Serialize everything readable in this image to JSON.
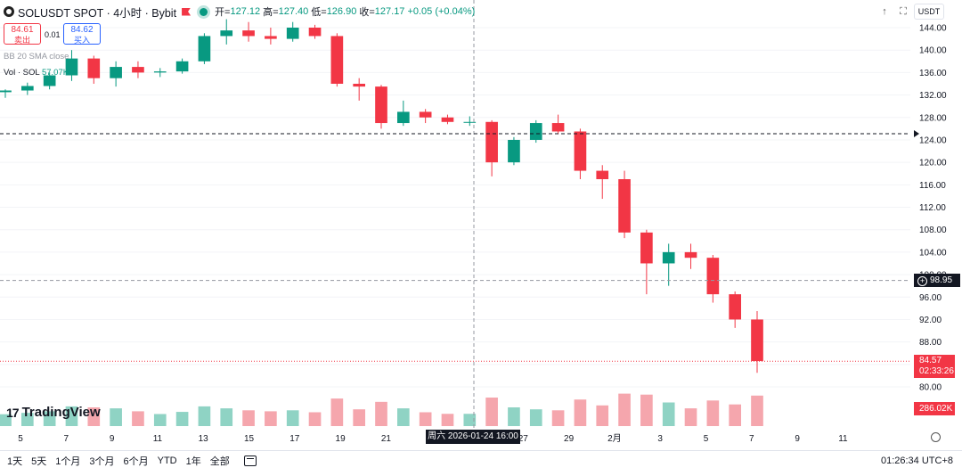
{
  "header": {
    "symbol_title": "SOLUSDT SPOT · 4小时 · Bybit",
    "open_label": "开=",
    "open_value": "127.12",
    "high_label": "高=",
    "high_value": "127.40",
    "low_label": "低=",
    "low_value": "126.90",
    "close_label": "收=",
    "close_value": "127.17",
    "change_value": "+0.05 (+0.04%)",
    "currency_label": "USDT",
    "icons": [
      "solana-icon",
      "flag-icon",
      "live-dot-icon",
      "up-arrow-icon",
      "fullscreen-icon"
    ]
  },
  "trade": {
    "sell_price": "84.61",
    "sell_label": "卖出",
    "spread": "0.01",
    "buy_price": "84.62",
    "buy_label": "买入"
  },
  "legends": {
    "bb": "BB 20 SMA close",
    "vol_label": "Vol · SOL",
    "vol_value": "57.07K"
  },
  "price_axis": {
    "ticks": [
      "144.00",
      "140.00",
      "136.00",
      "132.00",
      "128.00",
      "124.00",
      "120.00",
      "116.00",
      "112.00",
      "108.00",
      "104.00",
      "100.00",
      "96.00",
      "92.00",
      "88.00",
      "84.00",
      "80.00"
    ],
    "crosshair_price": "98.95",
    "last_price": "84.57",
    "countdown": "02:33:26",
    "volume_value": "286.02K"
  },
  "time_axis": {
    "ticks": [
      "5",
      "7",
      "9",
      "11",
      "13",
      "15",
      "17",
      "19",
      "21",
      "23",
      "25",
      "27",
      "29",
      "2月",
      "3",
      "5",
      "7",
      "9",
      "11"
    ],
    "crosshair_time": "周六 2026-01-24 16:00"
  },
  "branding": {
    "logo_text": "TradingView"
  },
  "bottombar": {
    "ranges": [
      "1天",
      "5天",
      "1个月",
      "3个月",
      "6个月",
      "YTD",
      "1年",
      "全部"
    ],
    "clock": "01:26:34 UTC+8"
  },
  "colors": {
    "up": "#089981",
    "down": "#f23645",
    "up_volume": "#8fd3c4",
    "down_volume": "#f5a6ad",
    "accent": "#2962ff"
  },
  "chart_data": {
    "type": "candlestick",
    "symbol": "SOLUSDT",
    "interval": "4小时",
    "y_range": [
      80,
      144
    ],
    "series": [
      {
        "name": "candles",
        "points": [
          [
            "01-04",
            132.5,
            133.0,
            131.5,
            132.8
          ],
          [
            "01-05",
            132.8,
            134.2,
            132.0,
            133.6
          ],
          [
            "01-06",
            133.6,
            136.0,
            133.0,
            135.5
          ],
          [
            "01-07",
            135.5,
            140.0,
            134.5,
            138.5
          ],
          [
            "01-08",
            138.5,
            139.0,
            134.0,
            135.0
          ],
          [
            "01-09",
            135.0,
            138.0,
            133.5,
            137.0
          ],
          [
            "01-10",
            137.0,
            138.0,
            135.0,
            136.0
          ],
          [
            "01-11",
            136.0,
            136.8,
            135.2,
            136.2
          ],
          [
            "01-12",
            136.2,
            138.5,
            135.8,
            138.0
          ],
          [
            "01-13",
            138.0,
            143.0,
            137.5,
            142.5
          ],
          [
            "01-14",
            142.5,
            145.5,
            141.0,
            143.5
          ],
          [
            "01-15",
            143.5,
            145.0,
            141.5,
            142.5
          ],
          [
            "01-16",
            142.5,
            144.0,
            141.0,
            142.0
          ],
          [
            "01-17",
            142.0,
            145.0,
            141.5,
            144.0
          ],
          [
            "01-18",
            144.0,
            144.5,
            142.0,
            142.5
          ],
          [
            "01-19",
            142.5,
            143.0,
            133.5,
            134.0
          ],
          [
            "01-20",
            134.0,
            135.0,
            131.0,
            133.5
          ],
          [
            "01-21",
            133.5,
            133.8,
            126.0,
            127.0
          ],
          [
            "01-22",
            127.0,
            131.0,
            126.5,
            129.0
          ],
          [
            "01-23",
            129.0,
            129.5,
            127.0,
            128.0
          ],
          [
            "01-24",
            128.0,
            128.5,
            126.8,
            127.2
          ],
          [
            "01-25",
            127.2,
            128.2,
            126.5,
            127.2
          ],
          [
            "01-26",
            127.2,
            127.5,
            117.5,
            120.0
          ],
          [
            "01-27",
            120.0,
            124.5,
            119.5,
            124.0
          ],
          [
            "01-28",
            124.0,
            127.5,
            123.5,
            127.0
          ],
          [
            "01-29",
            127.0,
            128.5,
            125.0,
            125.5
          ],
          [
            "01-30",
            125.5,
            126.0,
            117.0,
            118.5
          ],
          [
            "01-31",
            118.5,
            119.5,
            113.5,
            117.0
          ],
          [
            "02-01",
            117.0,
            118.5,
            106.5,
            107.5
          ],
          [
            "02-02",
            107.5,
            108.0,
            96.5,
            102.0
          ],
          [
            "02-03",
            102.0,
            105.5,
            98.0,
            104.0
          ],
          [
            "02-04",
            104.0,
            105.5,
            101.0,
            103.0
          ],
          [
            "02-05",
            103.0,
            103.5,
            95.0,
            96.5
          ],
          [
            "02-06",
            96.5,
            97.0,
            90.5,
            92.0
          ],
          [
            "02-07",
            92.0,
            93.5,
            82.5,
            84.6
          ]
        ]
      }
    ],
    "crosshair": {
      "price": 98.95,
      "time": "2026-01-24 16:00"
    },
    "last_price": 84.57,
    "grid": true
  }
}
